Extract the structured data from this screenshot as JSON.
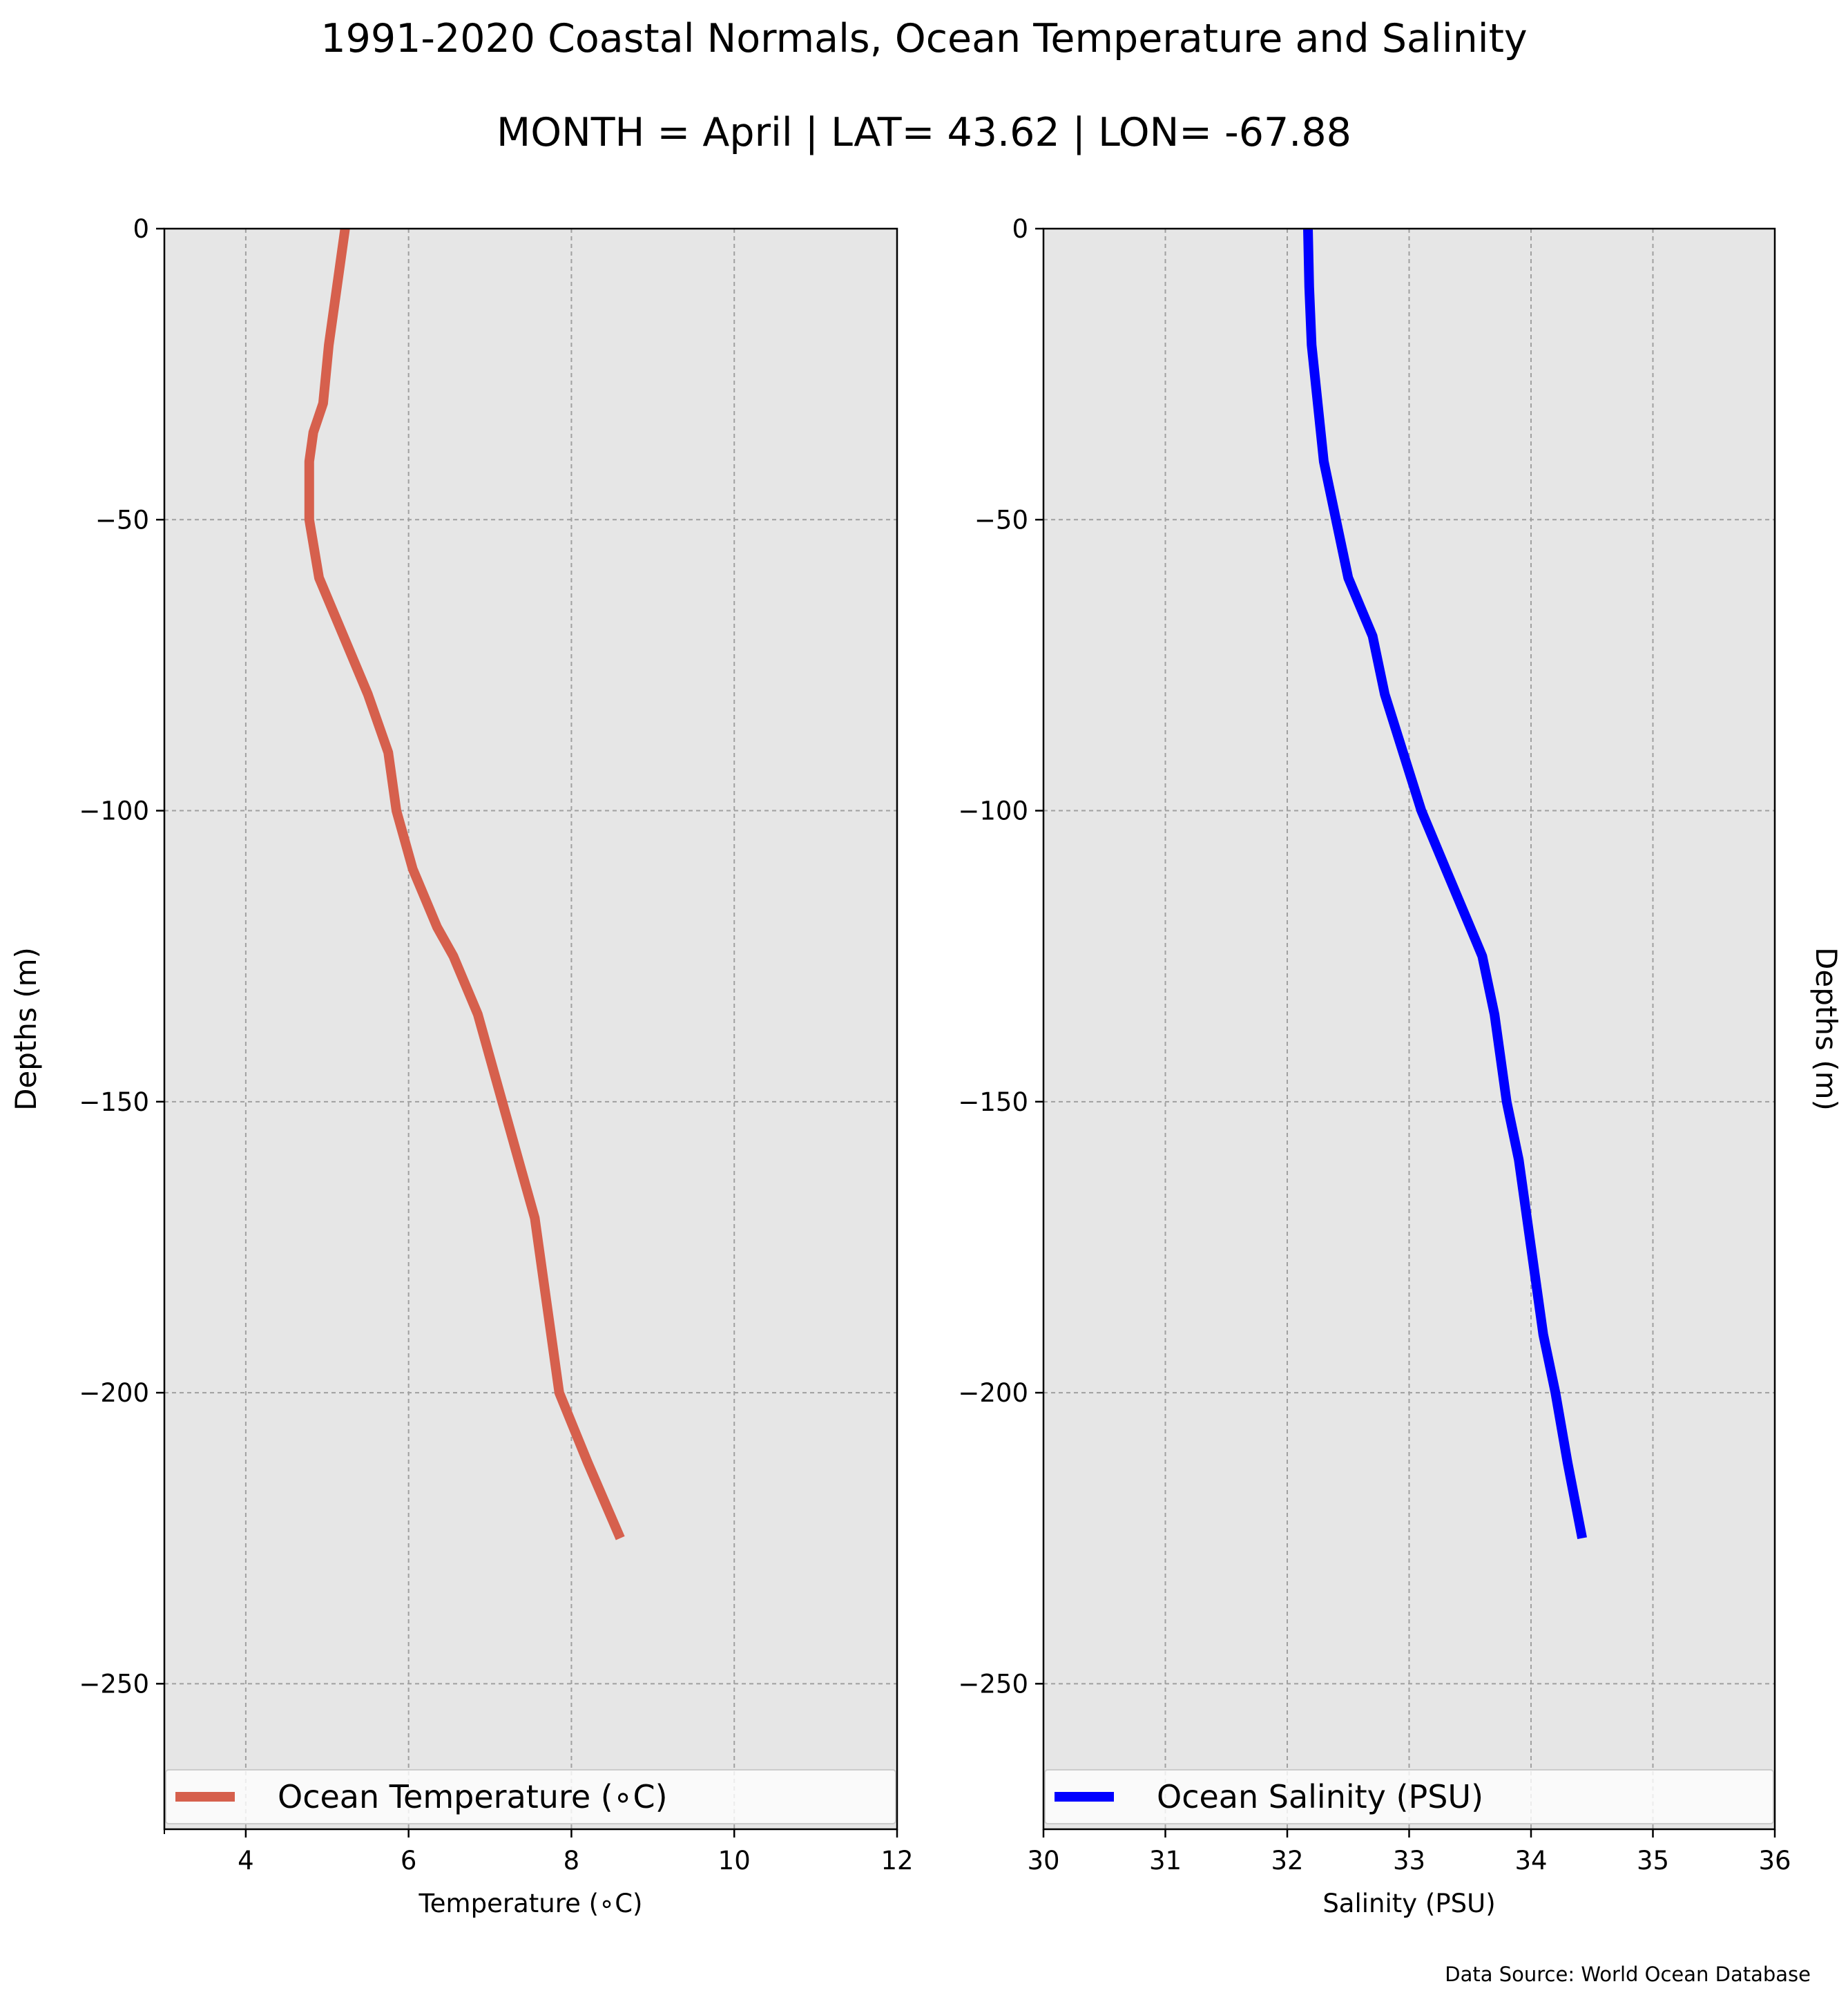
{
  "title": "1991-2020 Coastal Normals, Ocean Temperature and Salinity",
  "subtitle": "MONTH = April | LAT= 43.62 | LON= -67.88",
  "source": "Data Source: World Ocean Database",
  "chart_data": [
    {
      "type": "line",
      "xlabel": "Temperature ($^\\circ$C)",
      "xlabel_display": "Temperature (∘C)",
      "ylabel": "Depths (m)",
      "xlim": [
        3,
        12
      ],
      "ylim": [
        -275,
        0
      ],
      "x_ticks": [
        4,
        6,
        8,
        10,
        12
      ],
      "y_ticks": [
        0,
        -50,
        -100,
        -150,
        -200,
        -250
      ],
      "grid": true,
      "legend": "bottom",
      "series": [
        {
          "name": "Ocean Temperature (∘C)",
          "color": "#d6604d",
          "points": [
            {
              "x": 5.22,
              "y": 0
            },
            {
              "x": 5.12,
              "y": -10
            },
            {
              "x": 5.02,
              "y": -20
            },
            {
              "x": 4.95,
              "y": -30
            },
            {
              "x": 4.83,
              "y": -35
            },
            {
              "x": 4.78,
              "y": -40
            },
            {
              "x": 4.78,
              "y": -50
            },
            {
              "x": 4.9,
              "y": -60
            },
            {
              "x": 5.05,
              "y": -65
            },
            {
              "x": 5.2,
              "y": -70
            },
            {
              "x": 5.5,
              "y": -80
            },
            {
              "x": 5.75,
              "y": -90
            },
            {
              "x": 5.85,
              "y": -100
            },
            {
              "x": 6.05,
              "y": -110
            },
            {
              "x": 6.35,
              "y": -120
            },
            {
              "x": 6.55,
              "y": -125
            },
            {
              "x": 6.85,
              "y": -135
            },
            {
              "x": 7.15,
              "y": -150
            },
            {
              "x": 7.35,
              "y": -160
            },
            {
              "x": 7.55,
              "y": -170
            },
            {
              "x": 7.6,
              "y": -175
            },
            {
              "x": 7.75,
              "y": -190
            },
            {
              "x": 7.85,
              "y": -200
            },
            {
              "x": 8.2,
              "y": -212
            },
            {
              "x": 8.6,
              "y": -225
            }
          ]
        }
      ]
    },
    {
      "type": "line",
      "xlabel": "Salinity (PSU)",
      "ylabel": "Depths (m)",
      "xlim": [
        30,
        36
      ],
      "ylim": [
        -275,
        0
      ],
      "x_ticks": [
        30,
        31,
        32,
        33,
        34,
        35,
        36
      ],
      "y_ticks": [
        0,
        -50,
        -100,
        -150,
        -200,
        -250
      ],
      "grid": true,
      "legend": "bottom",
      "series": [
        {
          "name": "Ocean Salinity (PSU)",
          "color": "#0000ff",
          "points": [
            {
              "x": 32.17,
              "y": 0
            },
            {
              "x": 32.18,
              "y": -10
            },
            {
              "x": 32.2,
              "y": -20
            },
            {
              "x": 32.25,
              "y": -30
            },
            {
              "x": 32.3,
              "y": -40
            },
            {
              "x": 32.4,
              "y": -50
            },
            {
              "x": 32.5,
              "y": -60
            },
            {
              "x": 32.6,
              "y": -65
            },
            {
              "x": 32.7,
              "y": -70
            },
            {
              "x": 32.8,
              "y": -80
            },
            {
              "x": 32.95,
              "y": -90
            },
            {
              "x": 33.1,
              "y": -100
            },
            {
              "x": 33.3,
              "y": -110
            },
            {
              "x": 33.5,
              "y": -120
            },
            {
              "x": 33.6,
              "y": -125
            },
            {
              "x": 33.7,
              "y": -135
            },
            {
              "x": 33.8,
              "y": -150
            },
            {
              "x": 33.9,
              "y": -160
            },
            {
              "x": 34.0,
              "y": -175
            },
            {
              "x": 34.1,
              "y": -190
            },
            {
              "x": 34.2,
              "y": -200
            },
            {
              "x": 34.3,
              "y": -212
            },
            {
              "x": 34.42,
              "y": -225
            }
          ]
        }
      ]
    }
  ]
}
